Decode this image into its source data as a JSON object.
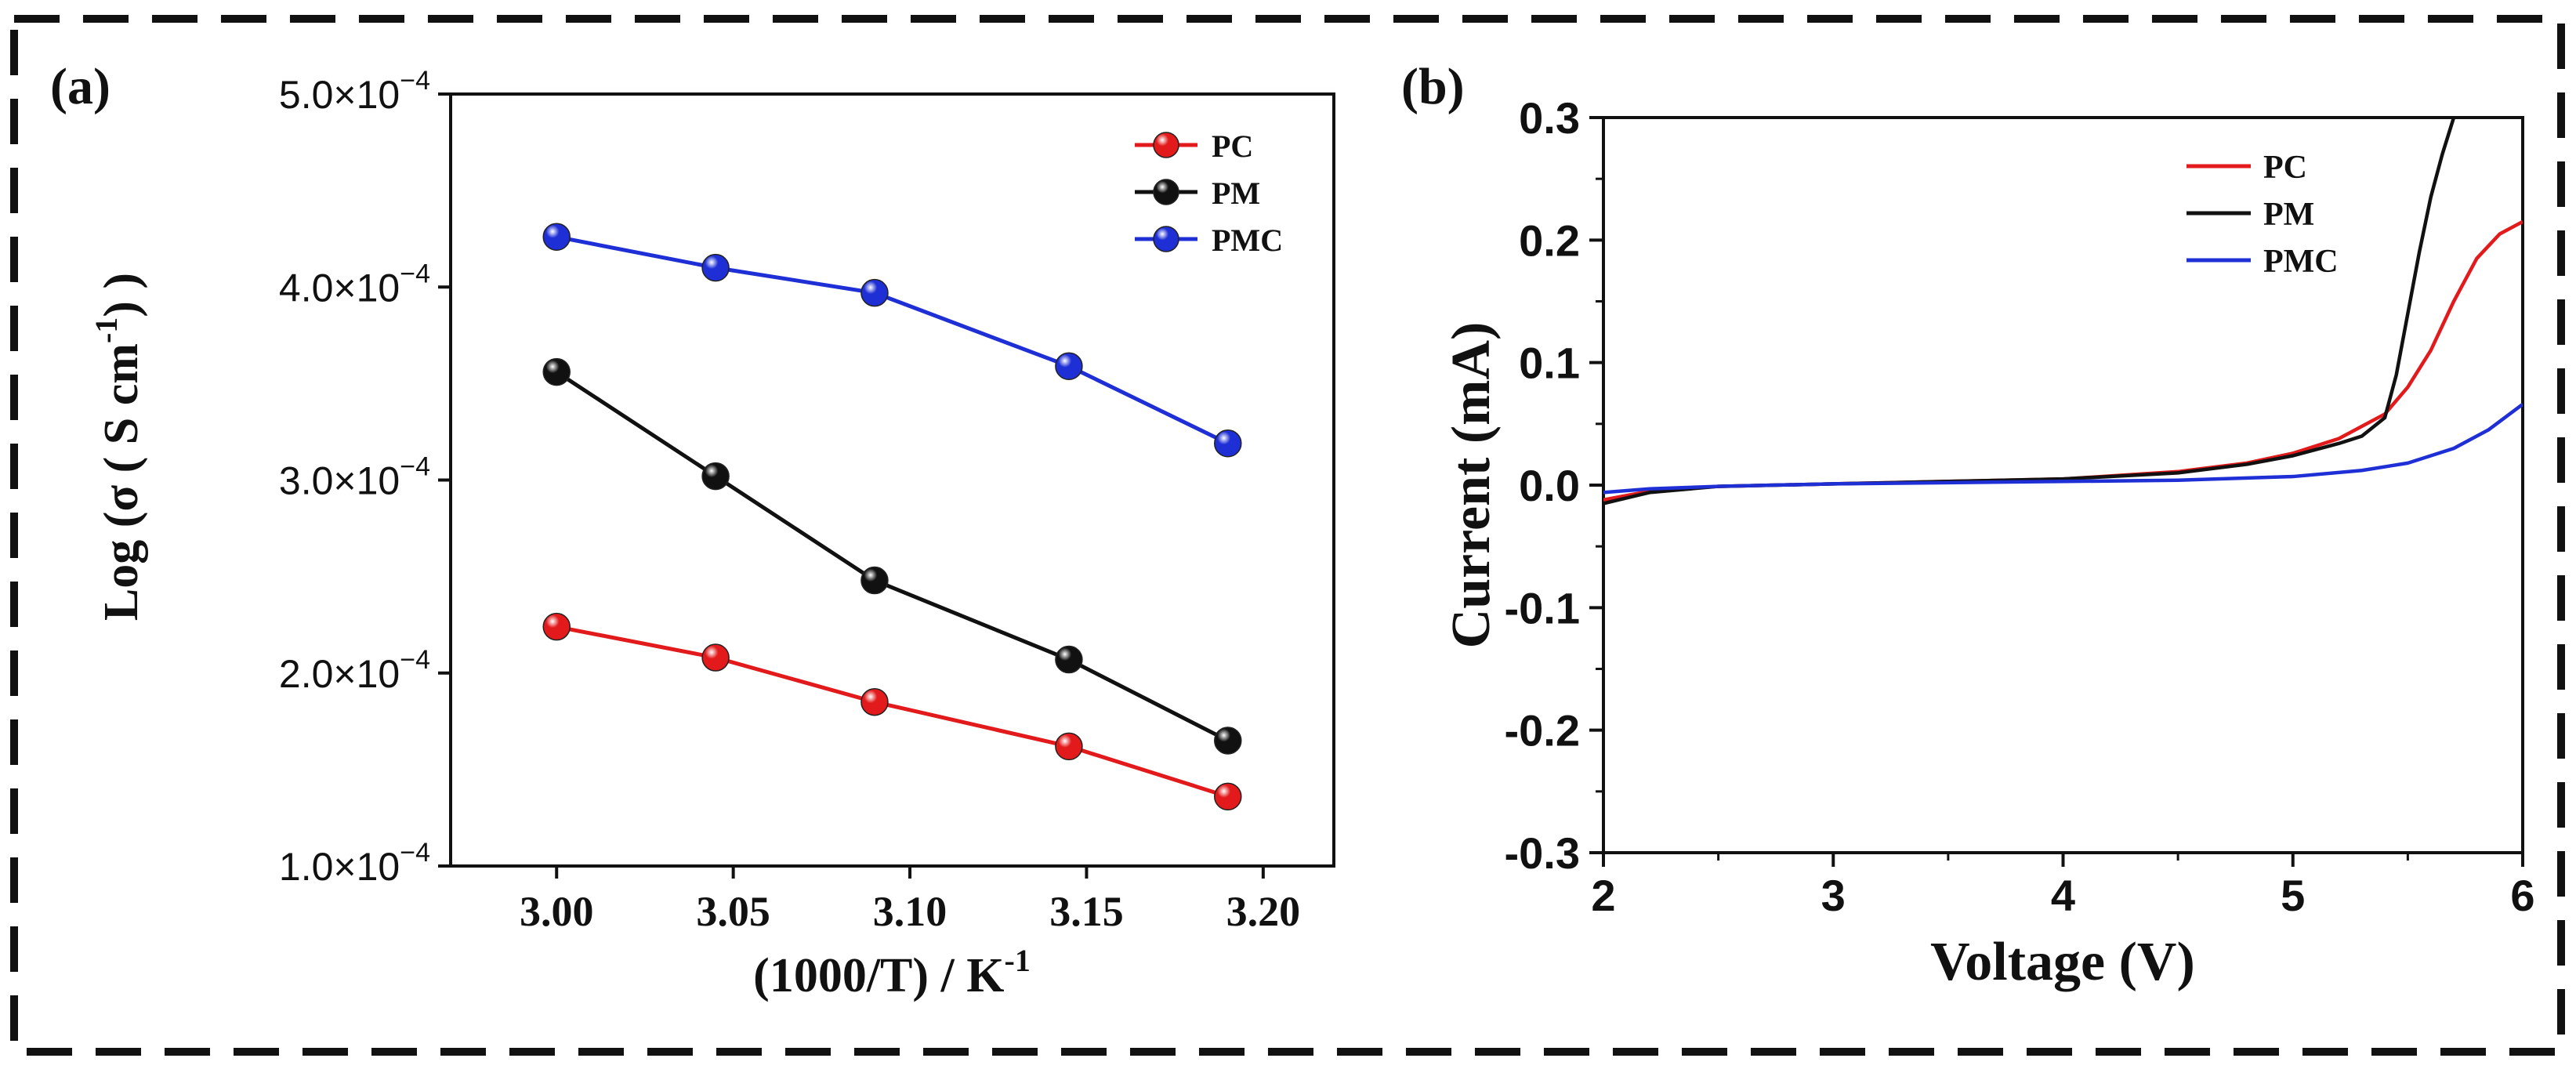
{
  "frame": {
    "border_color": "#111111"
  },
  "colors": {
    "PC": "#e31a1c",
    "PM": "#111111",
    "PMC": "#1f2fd6"
  },
  "chart_data": [
    {
      "panel_label": "(a)",
      "type": "line",
      "markers": true,
      "title": "",
      "xlabel": "(1000/T) / K",
      "xlabel_sup": "-1",
      "ylabel": "Log (σ ( S cm",
      "ylabel_sup": "-1",
      "ylabel_end": ") )",
      "xlim": [
        2.97,
        3.22
      ],
      "ylim": [
        0.0001,
        0.0005
      ],
      "x_ticks": [
        3.0,
        3.05,
        3.1,
        3.15,
        3.2
      ],
      "x_tick_labels": [
        "3.00",
        "3.05",
        "3.10",
        "3.15",
        "3.20"
      ],
      "y_ticks": [
        0.0001,
        0.0002,
        0.0003,
        0.0004,
        0.0005
      ],
      "y_tick_mantissa": [
        "1.0",
        "2.0",
        "3.0",
        "4.0",
        "5.0"
      ],
      "y_tick_times": "×10",
      "y_tick_exp": "−4",
      "legend_position": "top-right",
      "x": [
        3.0,
        3.045,
        3.09,
        3.145,
        3.19
      ],
      "series": [
        {
          "name": "PC",
          "values": [
            0.000224,
            0.000208,
            0.000185,
            0.000162,
            0.000136
          ]
        },
        {
          "name": "PM",
          "values": [
            0.000356,
            0.000302,
            0.000248,
            0.000207,
            0.000165
          ]
        },
        {
          "name": "PMC",
          "values": [
            0.000426,
            0.00041,
            0.000397,
            0.000359,
            0.000319
          ]
        }
      ]
    },
    {
      "panel_label": "(b)",
      "type": "line",
      "markers": false,
      "title": "",
      "xlabel": "Voltage (V)",
      "ylabel": "Current (mA)",
      "xlim": [
        2,
        6
      ],
      "ylim": [
        -0.3,
        0.3
      ],
      "x_ticks": [
        2,
        3,
        4,
        5,
        6
      ],
      "x_tick_labels": [
        "2",
        "3",
        "4",
        "5",
        "6"
      ],
      "y_ticks": [
        -0.3,
        -0.2,
        -0.1,
        0.0,
        0.1,
        0.2,
        0.3
      ],
      "y_tick_labels": [
        "-0.3",
        "-0.2",
        "-0.1",
        "0.0",
        "0.1",
        "0.2",
        "0.3"
      ],
      "legend_position": "top-right",
      "series": [
        {
          "name": "PC",
          "x": [
            2.0,
            2.2,
            2.5,
            3.0,
            3.5,
            4.0,
            4.5,
            4.8,
            5.0,
            5.2,
            5.4,
            5.5,
            5.6,
            5.7,
            5.8,
            5.9,
            6.0
          ],
          "y": [
            -0.012,
            -0.005,
            -0.001,
            0.001,
            0.003,
            0.005,
            0.011,
            0.018,
            0.026,
            0.038,
            0.058,
            0.08,
            0.11,
            0.15,
            0.185,
            0.205,
            0.215
          ]
        },
        {
          "name": "PM",
          "x": [
            2.0,
            2.2,
            2.5,
            3.0,
            3.5,
            4.0,
            4.5,
            4.8,
            5.0,
            5.2,
            5.3,
            5.4,
            5.45,
            5.5,
            5.55,
            5.6,
            5.65,
            5.7
          ],
          "y": [
            -0.015,
            -0.006,
            -0.001,
            0.001,
            0.003,
            0.005,
            0.01,
            0.017,
            0.024,
            0.034,
            0.04,
            0.055,
            0.09,
            0.14,
            0.19,
            0.235,
            0.27,
            0.3
          ]
        },
        {
          "name": "PMC",
          "x": [
            2.0,
            2.2,
            2.5,
            3.0,
            3.5,
            4.0,
            4.5,
            5.0,
            5.3,
            5.5,
            5.7,
            5.85,
            6.0
          ],
          "y": [
            -0.006,
            -0.003,
            -0.001,
            0.001,
            0.002,
            0.003,
            0.004,
            0.007,
            0.012,
            0.018,
            0.03,
            0.045,
            0.066
          ]
        }
      ]
    }
  ]
}
